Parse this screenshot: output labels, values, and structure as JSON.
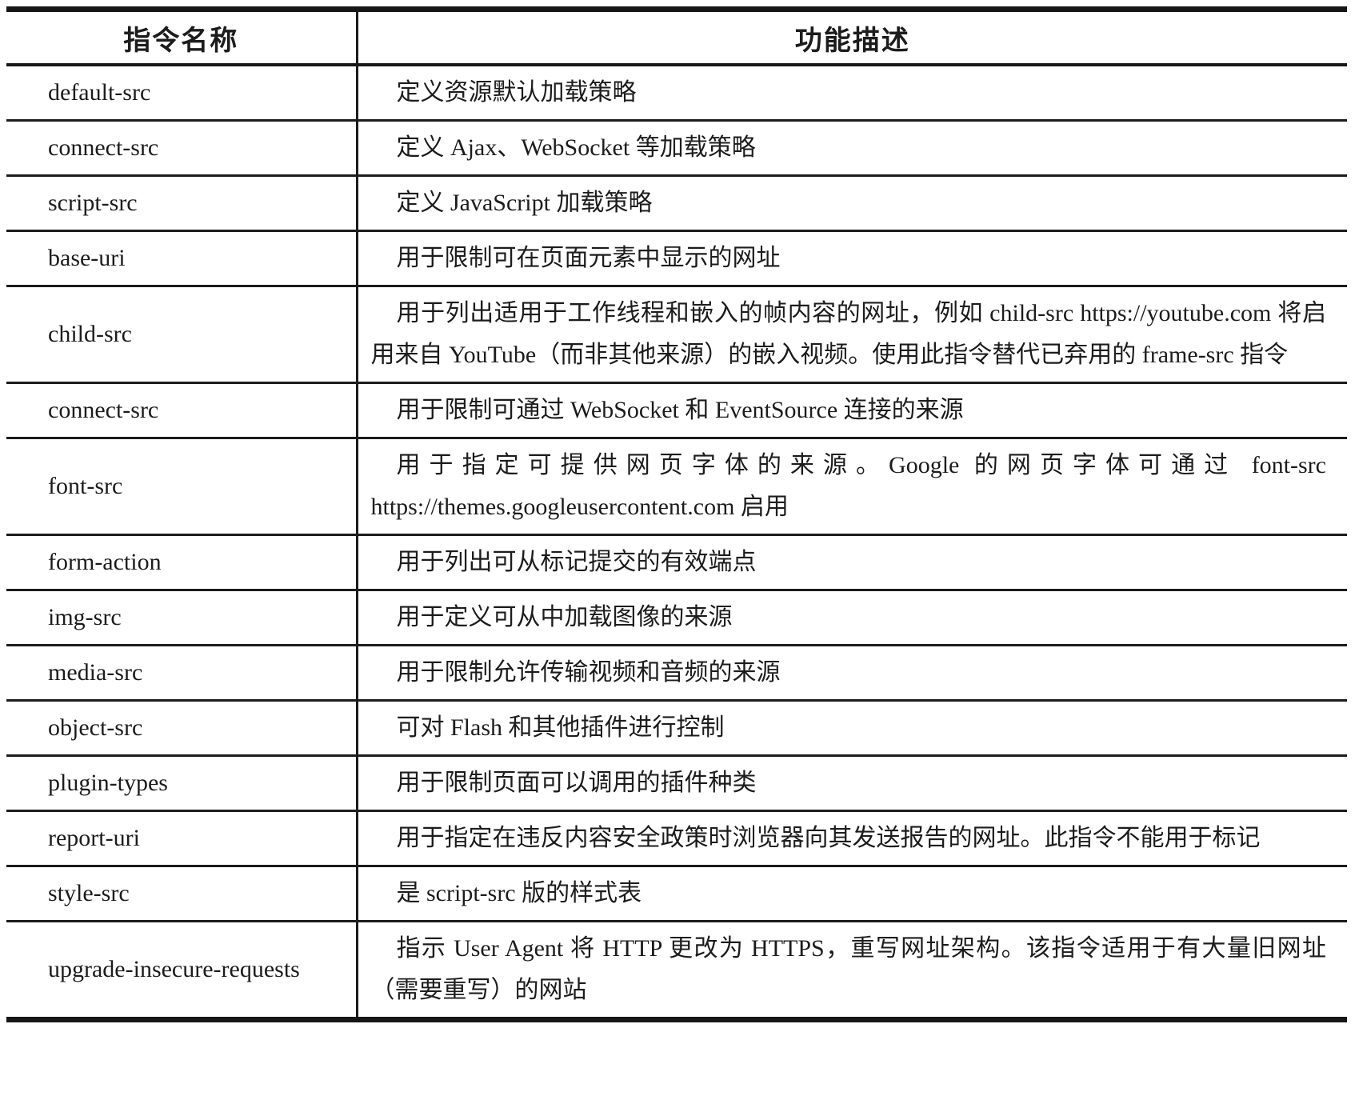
{
  "colors": {
    "background": "#ffffff",
    "text": "#1c1c1c",
    "border": "#161616"
  },
  "table": {
    "headers": [
      "指令名称",
      "功能描述"
    ],
    "rows": [
      {
        "directive": "default-src",
        "description": "定义资源默认加载策略"
      },
      {
        "directive": "connect-src",
        "description": "定义 Ajax、WebSocket 等加载策略"
      },
      {
        "directive": "script-src",
        "description": "定义 JavaScript 加载策略"
      },
      {
        "directive": "base-uri",
        "description": "用于限制可在页面元素中显示的网址"
      },
      {
        "directive": "child-src",
        "description": "用于列出适用于工作线程和嵌入的帧内容的网址，例如 child-src https://youtube.com 将启用来自 YouTube（而非其他来源）的嵌入视频。使用此指令替代已弃用的 frame-src 指令"
      },
      {
        "directive": "connect-src",
        "description": "用于限制可通过 WebSocket 和 EventSource 连接的来源"
      },
      {
        "directive": "font-src",
        "description": "用于指定可提供网页字体的来源。Google 的网页字体可通过 font-src https://themes.googleusercontent.com 启用"
      },
      {
        "directive": "form-action",
        "description": "用于列出可从标记提交的有效端点"
      },
      {
        "directive": "img-src",
        "description": "用于定义可从中加载图像的来源"
      },
      {
        "directive": "media-src",
        "description": "用于限制允许传输视频和音频的来源"
      },
      {
        "directive": "object-src",
        "description": "可对 Flash 和其他插件进行控制"
      },
      {
        "directive": "plugin-types",
        "description": "用于限制页面可以调用的插件种类"
      },
      {
        "directive": "report-uri",
        "description": "用于指定在违反内容安全政策时浏览器向其发送报告的网址。此指令不能用于标记"
      },
      {
        "directive": "style-src",
        "description": "是 script-src 版的样式表"
      },
      {
        "directive": "upgrade-insecure-requests",
        "description": "指示 User Agent 将 HTTP 更改为 HTTPS，重写网址架构。该指令适用于有大量旧网址（需要重写）的网站"
      }
    ]
  }
}
